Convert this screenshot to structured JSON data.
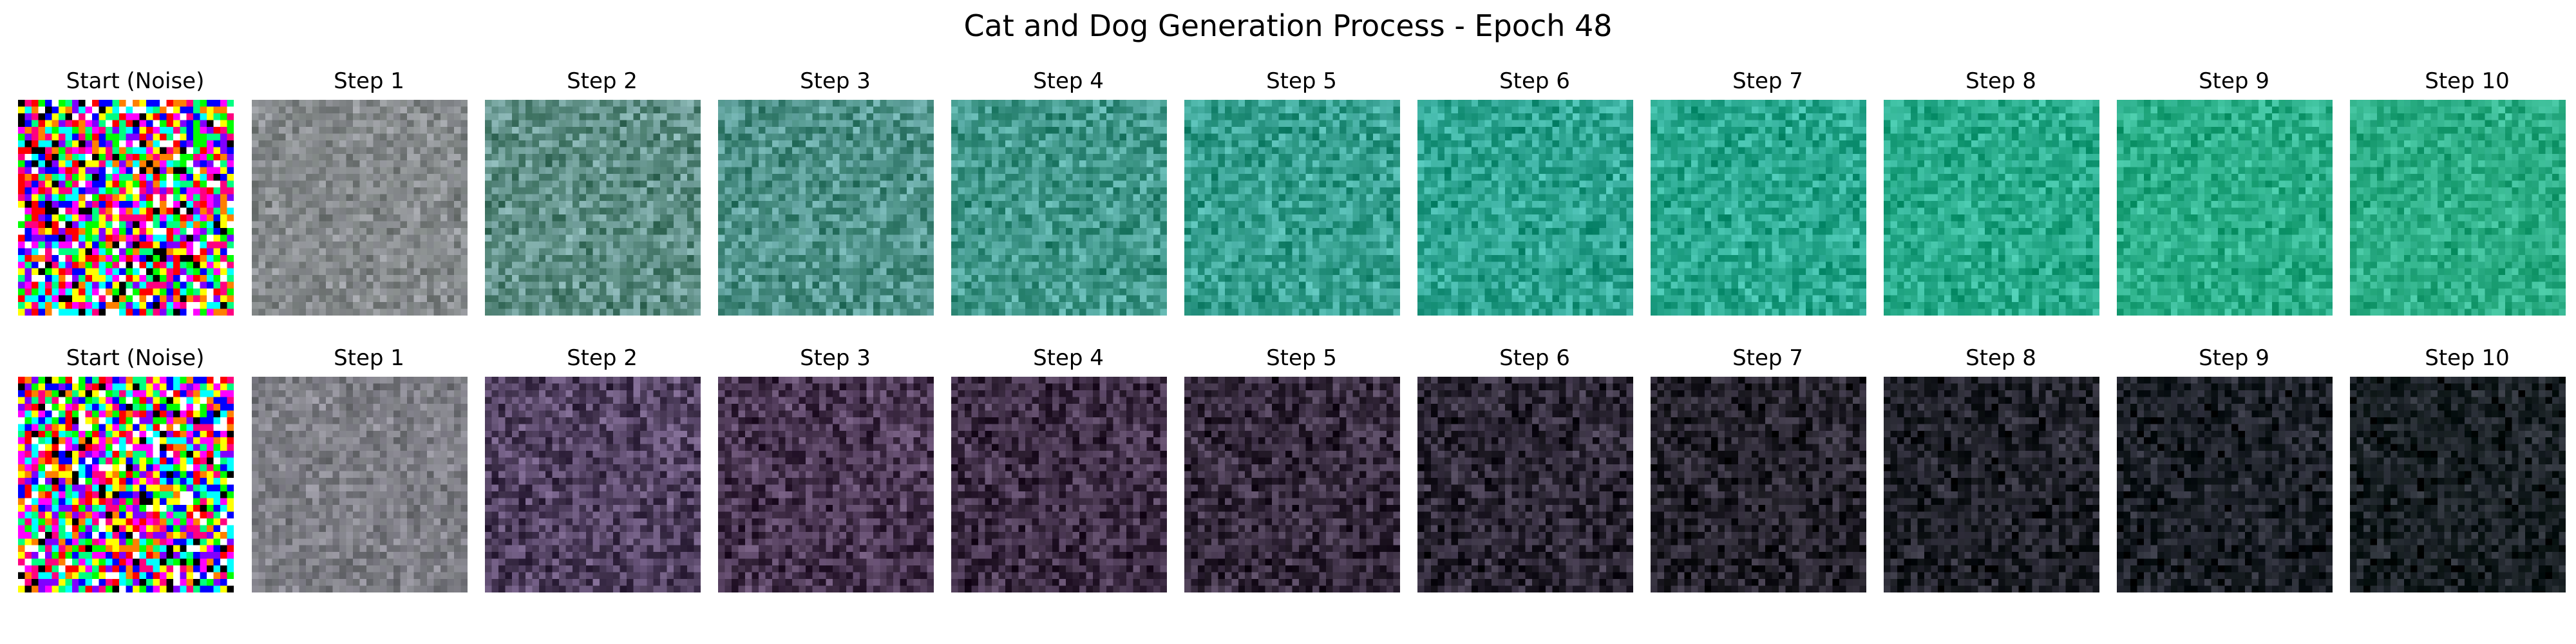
{
  "title": "Cat and Dog Generation Process - Epoch 48",
  "rows": [
    {
      "panels": [
        {
          "label": "Start (Noise)",
          "kind": "noise",
          "tint": "#808080"
        },
        {
          "label": "Step 1",
          "kind": "blur",
          "tint": "#868a8c"
        },
        {
          "label": "Step 2",
          "kind": "sample",
          "tint": "#5f8f86"
        },
        {
          "label": "Step 3",
          "kind": "sample",
          "tint": "#4f938a"
        },
        {
          "label": "Step 4",
          "kind": "sample",
          "tint": "#42998c"
        },
        {
          "label": "Step 5",
          "kind": "sample",
          "tint": "#36a090"
        },
        {
          "label": "Step 6",
          "kind": "sample",
          "tint": "#2ea592"
        },
        {
          "label": "Step 7",
          "kind": "sample",
          "tint": "#2aa990"
        },
        {
          "label": "Step 8",
          "kind": "sample",
          "tint": "#29ac8c"
        },
        {
          "label": "Step 9",
          "kind": "sample",
          "tint": "#2aae88"
        },
        {
          "label": "Step 10",
          "kind": "sample",
          "tint": "#2cae86"
        }
      ]
    },
    {
      "panels": [
        {
          "label": "Start (Noise)",
          "kind": "noise",
          "tint": "#808080"
        },
        {
          "label": "Step 1",
          "kind": "blur",
          "tint": "#7f7f86"
        },
        {
          "label": "Step 2",
          "kind": "sample",
          "tint": "#534262"
        },
        {
          "label": "Step 3",
          "kind": "sample",
          "tint": "#4a3652"
        },
        {
          "label": "Step 4",
          "kind": "sample",
          "tint": "#3f2e46"
        },
        {
          "label": "Step 5",
          "kind": "sample",
          "tint": "#362a3d"
        },
        {
          "label": "Step 6",
          "kind": "sample",
          "tint": "#2c2634"
        },
        {
          "label": "Step 7",
          "kind": "sample",
          "tint": "#25222c"
        },
        {
          "label": "Step 8",
          "kind": "sample",
          "tint": "#1f2028"
        },
        {
          "label": "Step 9",
          "kind": "sample",
          "tint": "#1b1f26"
        },
        {
          "label": "Step 10",
          "kind": "sample",
          "tint": "#192024"
        }
      ]
    }
  ]
}
